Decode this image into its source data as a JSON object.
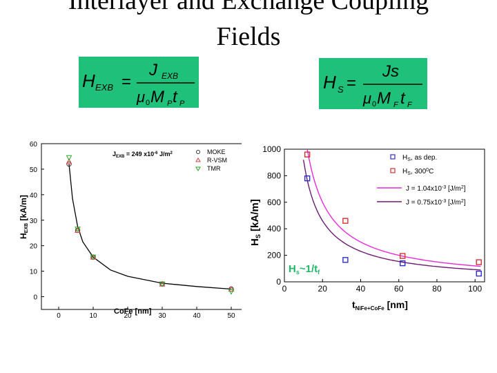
{
  "title": {
    "line1": "Interlayer and Exchange Coupling",
    "line2": "Fields"
  },
  "equations": {
    "exb": {
      "lhs": "H",
      "lhs_sub": "EXB",
      "num": "J",
      "num_sub": "EXB",
      "den": "μ0MPtP"
    },
    "s": {
      "lhs": "H",
      "lhs_sub": "S",
      "num": "Js",
      "den": "μ0MFtF"
    }
  },
  "colors": {
    "equation_bg": "#1fc079",
    "annotation": "#1fb866",
    "magenta": "#e62ad8",
    "purple": "#6b1a72",
    "blue": "#2b2bd0",
    "red": "#d43030"
  },
  "chart_data": [
    {
      "type": "scatter",
      "xlabel": "CoFe [nm]",
      "ylabel": "HEXB [kA/m]",
      "xlim": [
        -5,
        55
      ],
      "ylim": [
        -5,
        60
      ],
      "xticks": [
        "0",
        "10",
        "20",
        "30",
        "40",
        "50"
      ],
      "yticks": [
        "0",
        "10",
        "20",
        "30",
        "40",
        "50",
        "60"
      ],
      "annotation": "JEXB = 249 x10-6 J/m2",
      "legend_position": "top-right",
      "series": [
        {
          "name": "MOKE",
          "marker": "circle",
          "x": [
            3,
            5.5,
            10,
            30,
            50
          ],
          "y": [
            52,
            26,
            15.5,
            5,
            3
          ]
        },
        {
          "name": "R-VSM",
          "marker": "triangle-up",
          "x": [
            3,
            5.5,
            10,
            30,
            50
          ],
          "y": [
            53,
            26,
            15.5,
            5,
            3
          ]
        },
        {
          "name": "TMR",
          "marker": "triangle-down",
          "x": [
            3,
            5.5,
            10,
            30,
            50
          ],
          "y": [
            54.5,
            26.5,
            15.5,
            5,
            2
          ]
        }
      ],
      "fit_curve": {
        "x": [
          3,
          4,
          5.5,
          7,
          10,
          15,
          20,
          30,
          40,
          50
        ],
        "y": [
          52,
          38.5,
          27.5,
          21.5,
          15.5,
          10.5,
          8,
          5.3,
          4,
          3
        ]
      }
    },
    {
      "type": "scatter",
      "xlabel": "tNiFe+CoFe [nm]",
      "ylabel": "Hs [kA/m]",
      "xlim": [
        0,
        105
      ],
      "ylim": [
        0,
        1000
      ],
      "xticks": [
        "0",
        "20",
        "40",
        "60",
        "80",
        "100"
      ],
      "yticks": [
        "0",
        "200",
        "400",
        "600",
        "800",
        "1000"
      ],
      "annotation": "Hs~1/tf",
      "legend_position": "top-right",
      "series": [
        {
          "name": "Hs, as dep.",
          "marker": "square",
          "color": "blue",
          "x": [
            12,
            32,
            62,
            102
          ],
          "y": [
            780,
            165,
            140,
            62
          ]
        },
        {
          "name": "Hs, 300°C",
          "marker": "square",
          "color": "red",
          "x": [
            12,
            32,
            62,
            102
          ],
          "y": [
            960,
            460,
            195,
            148
          ]
        },
        {
          "name": "J = 1.04x10-3 [J/m2]",
          "line": true,
          "color": "magenta",
          "k": 12000
        },
        {
          "name": "J = 0.75x10-3 [J/m2]",
          "line": true,
          "color": "purple",
          "k": 9200
        }
      ]
    }
  ]
}
